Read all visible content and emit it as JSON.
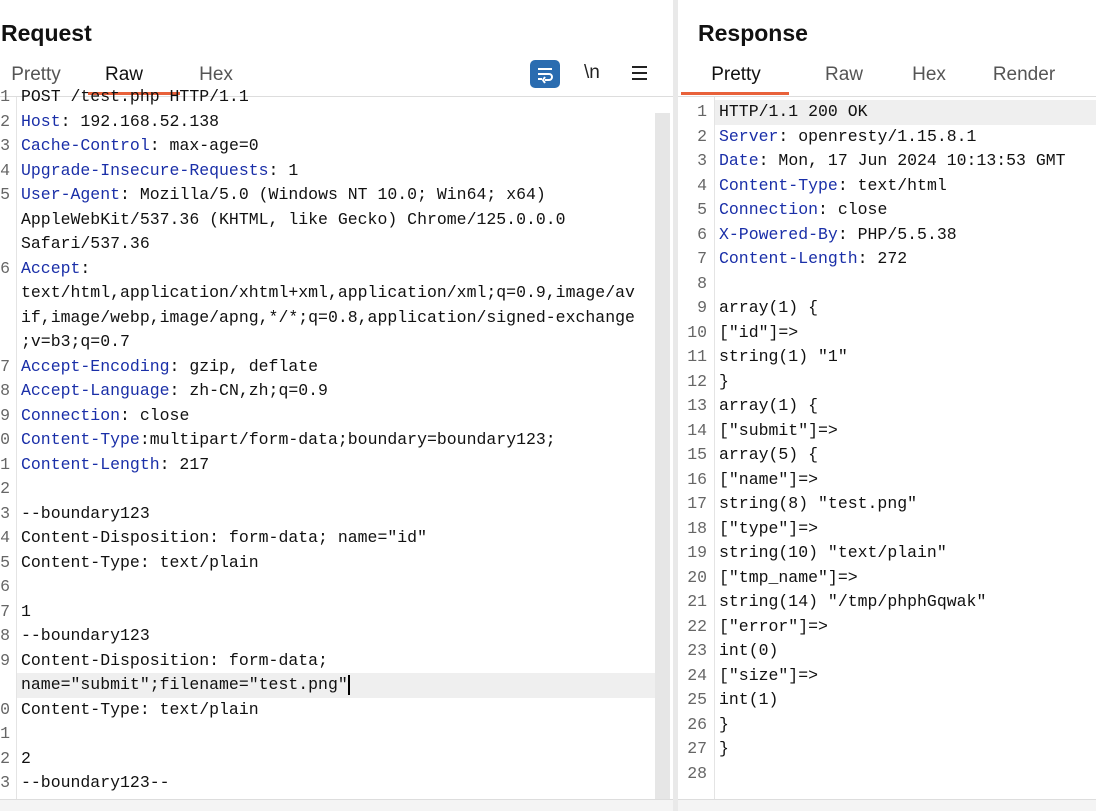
{
  "request": {
    "title": "Request",
    "tabs": [
      "Pretty",
      "Raw",
      "Hex"
    ],
    "active_tab": 1,
    "newline_toggle": "\\n",
    "lines": [
      {
        "num": "1",
        "text": "POST /test.php HTTP/1.1"
      },
      {
        "num": "2",
        "key": "Host",
        "rest": ": 192.168.52.138"
      },
      {
        "num": "3",
        "key": "Cache-Control",
        "rest": ": max-age=0"
      },
      {
        "num": "4",
        "key": "Upgrade-Insecure-Requests",
        "rest": ": 1"
      },
      {
        "num": "5",
        "key": "User-Agent",
        "rest": ": Mozilla/5.0 (Windows NT 10.0; Win64; x64)"
      },
      {
        "text": "AppleWebKit/537.36 (KHTML, like Gecko) Chrome/125.0.0.0"
      },
      {
        "text": "Safari/537.36"
      },
      {
        "num": "6",
        "key": "Accept",
        "rest": ":"
      },
      {
        "text": "text/html,application/xhtml+xml,application/xml;q=0.9,image/av"
      },
      {
        "text": "if,image/webp,image/apng,*/*;q=0.8,application/signed-exchange"
      },
      {
        "text": ";v=b3;q=0.7"
      },
      {
        "num": "7",
        "key": "Accept-Encoding",
        "rest": ": gzip, deflate"
      },
      {
        "num": "8",
        "key": "Accept-Language",
        "rest": ": zh-CN,zh;q=0.9"
      },
      {
        "num": "9",
        "key": "Connection",
        "rest": ": close"
      },
      {
        "num": "0",
        "key": "Content-Type",
        "rest": ":multipart/form-data;boundary=boundary123;"
      },
      {
        "num": "1",
        "key": "Content-Length",
        "rest": ": 217"
      },
      {
        "num": "2"
      },
      {
        "num": "3",
        "text": "--boundary123"
      },
      {
        "num": "4",
        "text": "Content-Disposition: form-data; name=\"id\""
      },
      {
        "num": "5",
        "text": "Content-Type: text/plain"
      },
      {
        "num": "6"
      },
      {
        "num": "7",
        "text": "1"
      },
      {
        "num": "8",
        "text": "--boundary123"
      },
      {
        "num": "9",
        "text": "Content-Disposition: form-data;"
      },
      {
        "text": "name=\"submit\";filename=\"test.png\"",
        "highlight": true,
        "cursor": true
      },
      {
        "num": "0",
        "text": "Content-Type: text/plain"
      },
      {
        "num": "1"
      },
      {
        "num": "2",
        "text": "2"
      },
      {
        "num": "3",
        "text": "--boundary123--"
      }
    ]
  },
  "response": {
    "title": "Response",
    "tabs": [
      "Pretty",
      "Raw",
      "Hex",
      "Render"
    ],
    "active_tab": 0,
    "lines": [
      {
        "num": "1",
        "text": "HTTP/1.1 200 OK",
        "highlight": true
      },
      {
        "num": "2",
        "key": "Server",
        "rest": ": openresty/1.15.8.1"
      },
      {
        "num": "3",
        "key": "Date",
        "rest": ": Mon, 17 Jun 2024 10:13:53 GMT"
      },
      {
        "num": "4",
        "key": "Content-Type",
        "rest": ": text/html"
      },
      {
        "num": "5",
        "key": "Connection",
        "rest": ": close"
      },
      {
        "num": "6",
        "key": "X-Powered-By",
        "rest": ": PHP/5.5.38"
      },
      {
        "num": "7",
        "key": "Content-Length",
        "rest": ": 272"
      },
      {
        "num": "8"
      },
      {
        "num": "9",
        "text": "array(1) {"
      },
      {
        "num": "10",
        "text": "[\"id\"]=>"
      },
      {
        "num": "11",
        "text": "string(1) \"1\""
      },
      {
        "num": "12",
        "text": "}"
      },
      {
        "num": "13",
        "text": "array(1) {"
      },
      {
        "num": "14",
        "text": "[\"submit\"]=>"
      },
      {
        "num": "15",
        "text": "array(5) {"
      },
      {
        "num": "16",
        "text": "[\"name\"]=>"
      },
      {
        "num": "17",
        "text": "string(8) \"test.png\""
      },
      {
        "num": "18",
        "text": "[\"type\"]=>"
      },
      {
        "num": "19",
        "text": "string(10) \"text/plain\""
      },
      {
        "num": "20",
        "text": "[\"tmp_name\"]=>"
      },
      {
        "num": "21",
        "text": "string(14) \"/tmp/phphGqwak\""
      },
      {
        "num": "22",
        "text": "[\"error\"]=>"
      },
      {
        "num": "23",
        "text": "int(0)"
      },
      {
        "num": "24",
        "text": "[\"size\"]=>"
      },
      {
        "num": "25",
        "text": "int(1)"
      },
      {
        "num": "26",
        "text": "}"
      },
      {
        "num": "27",
        "text": "}"
      },
      {
        "num": "28"
      }
    ]
  }
}
